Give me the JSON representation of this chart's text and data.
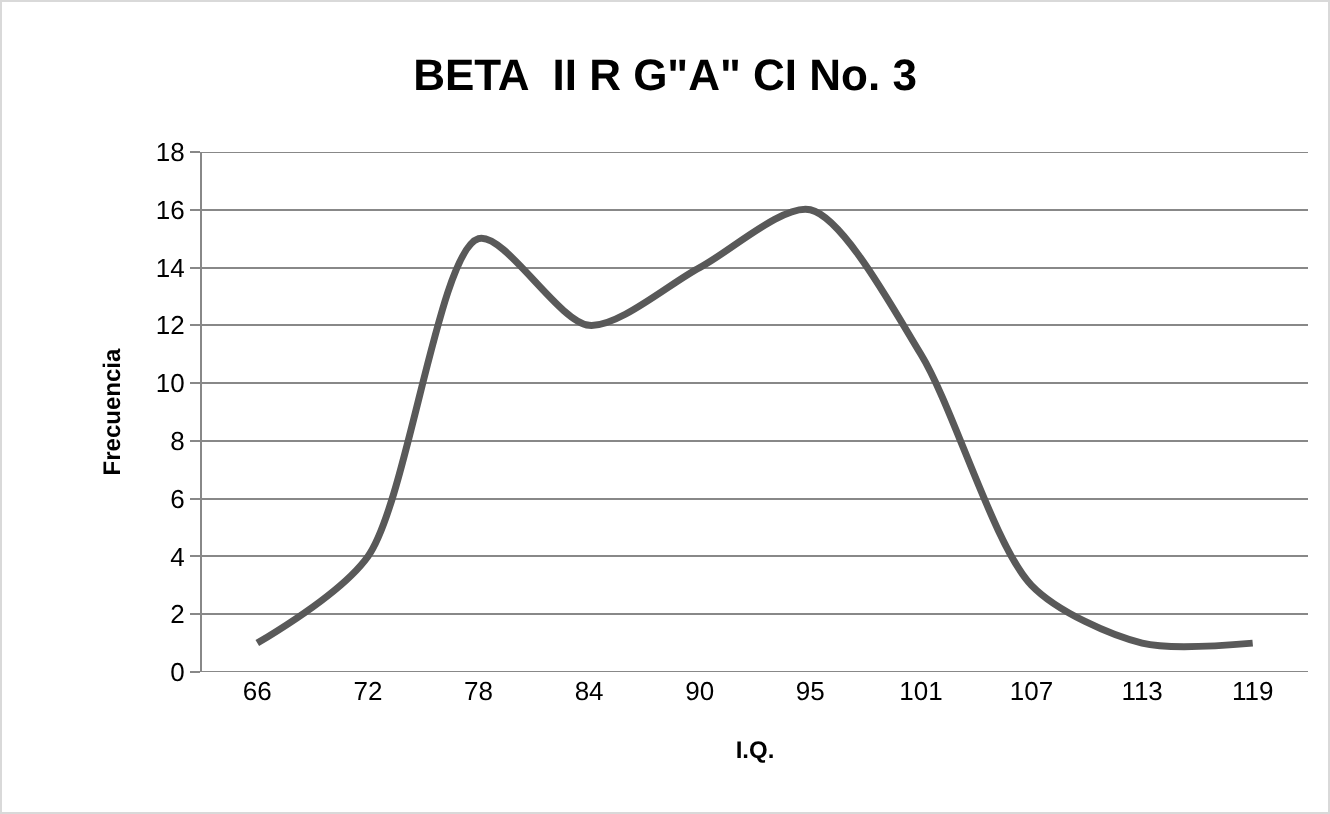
{
  "chart_data": {
    "type": "line",
    "title": "BETA  II R G\"A\" CI No. 3",
    "xlabel": "I.Q.",
    "ylabel": "Frecuencia",
    "categories": [
      "66",
      "72",
      "78",
      "84",
      "90",
      "95",
      "101",
      "107",
      "113",
      "119"
    ],
    "series": [
      {
        "color": "#595959",
        "values": [
          1,
          4,
          15,
          12,
          14,
          16,
          11,
          3,
          1,
          1
        ]
      }
    ],
    "ylim": [
      0,
      18
    ],
    "yticks": [
      0,
      2,
      4,
      6,
      8,
      10,
      12,
      14,
      16,
      18
    ],
    "grid": "y",
    "marker": "none",
    "line_style": "solid"
  }
}
